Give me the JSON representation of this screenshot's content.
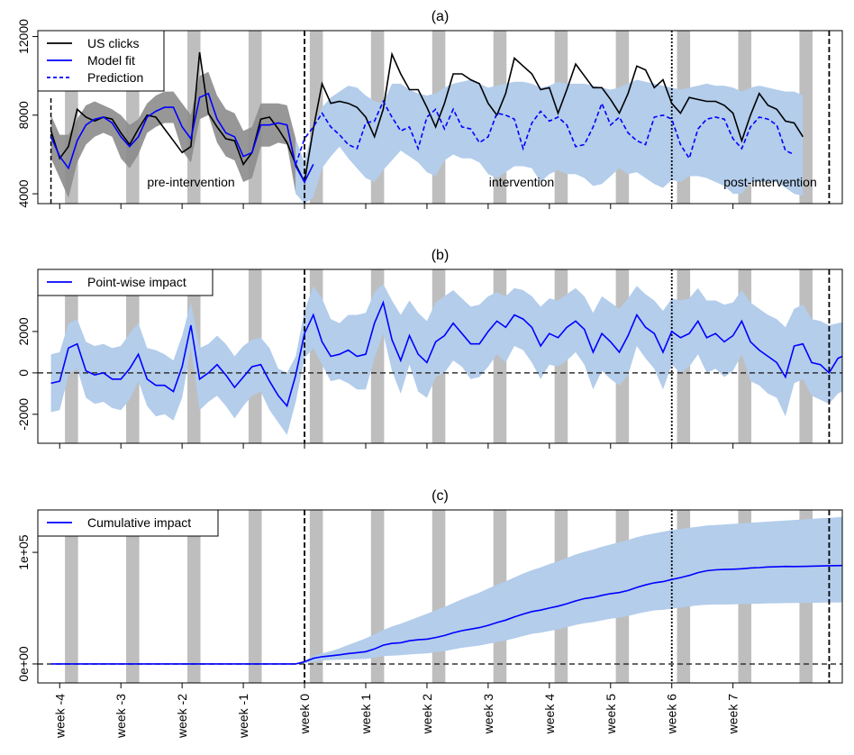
{
  "chart_data": [
    {
      "type": "line",
      "title": "(a)",
      "ylim": [
        3500,
        12300
      ],
      "yticks": [
        4000,
        8000,
        12000
      ],
      "yticklabels": [
        "4000",
        "8000",
        "12000"
      ],
      "legend": {
        "placement": "top-left",
        "entries": [
          "US clicks",
          "Model fit",
          "Prediction"
        ]
      },
      "annotations": [
        "pre-intervention",
        "intervention",
        "post-intervention"
      ],
      "colors": {
        "observed": "#000000",
        "fit": "#0000ff",
        "band_pre": "#8c8c8c",
        "band_post": "#b3cdeb",
        "weekend": "#bebebe"
      },
      "series": [
        {
          "name": "US clicks",
          "x_start": -29,
          "values": [
            7200,
            5800,
            6400,
            8300,
            7900,
            7700,
            7900,
            7800,
            7100,
            6500,
            7300,
            8000,
            7900,
            7300,
            6700,
            6100,
            6400,
            11200,
            8100,
            7400,
            6800,
            6700,
            5500,
            6100,
            7800,
            7900,
            7300,
            6600,
            5500,
            4600,
            7300,
            9600,
            8600,
            8700,
            8600,
            8400,
            7900,
            6900,
            8300,
            11100,
            10100,
            9300,
            9300,
            8400,
            7400,
            8600,
            10100,
            10100,
            9800,
            9600,
            8600,
            8000,
            9100,
            10900,
            10500,
            10100,
            9300,
            9400,
            8100,
            9300,
            10600,
            10000,
            9400,
            9400,
            8800,
            8100,
            9100,
            10500,
            10300,
            9400,
            9800,
            8600,
            8100,
            8900,
            8800,
            8700,
            8700,
            8500,
            8100,
            6700,
            8000,
            9100,
            8500,
            8300,
            7700,
            7600,
            6900
          ]
        },
        {
          "name": "Model fit",
          "x_start": -29,
          "values": [
            6900,
            5900,
            5300,
            6700,
            7500,
            7800,
            7900,
            7600,
            6900,
            6400,
            6900,
            7900,
            8200,
            8400,
            8400,
            7400,
            6800,
            8900,
            9100,
            7800,
            7100,
            6900,
            5900,
            6100,
            7500,
            7500,
            7600,
            7500,
            5400,
            4600,
            5500
          ]
        },
        {
          "name": "Prediction",
          "x_start": -1,
          "values": [
            5500,
            6800,
            7400,
            8100,
            7400,
            7000,
            6500,
            6300,
            7600,
            7700,
            8700,
            7900,
            7200,
            7400,
            6300,
            7900,
            8300,
            7300,
            8300,
            7400,
            7300,
            6600,
            6900,
            8100,
            8000,
            7800,
            6300,
            7600,
            8200,
            7700,
            7900,
            7500,
            6400,
            6500,
            7400,
            8600,
            7500,
            7900,
            7100,
            6700,
            6500,
            7900,
            8000,
            7800,
            6500,
            5800,
            7300,
            7800,
            7900,
            7800,
            6800,
            6300,
            7400,
            7900,
            7800,
            7500,
            6200,
            6000
          ]
        },
        {
          "name": "band",
          "x_start": -29,
          "upper": [
            8000,
            7000,
            7000,
            7800,
            8500,
            8700,
            8500,
            8300,
            8000,
            7500,
            7800,
            8600,
            9000,
            9200,
            9200,
            8600,
            8000,
            10000,
            10200,
            9000,
            8300,
            8100,
            7200,
            7400,
            8600,
            8600,
            8600,
            8500,
            6800,
            5600,
            7400,
            8400,
            8900,
            9200,
            9500,
            9400,
            9000,
            8700,
            8600,
            9600,
            9600,
            9300,
            9100,
            9000,
            9100,
            9400,
            9600,
            9700,
            9800,
            9600,
            9400,
            9500,
            9600,
            9700,
            9700,
            9600,
            9400,
            9500,
            9700,
            9600,
            9600,
            9600,
            9500,
            9400,
            9300,
            9400,
            9600,
            9800,
            9700,
            9600,
            9500,
            9400,
            9300,
            9400,
            9500,
            9600,
            9500,
            9500,
            9400,
            9200,
            9400,
            9500,
            9400,
            9300,
            9200,
            9200,
            9000
          ],
          "lower": [
            5800,
            4800,
            3800,
            5600,
            6500,
            6900,
            7100,
            6900,
            5800,
            5300,
            6000,
            7100,
            7400,
            7600,
            7600,
            6200,
            5600,
            7800,
            8000,
            6600,
            5900,
            5700,
            4600,
            4800,
            6400,
            6400,
            6600,
            6500,
            4000,
            3500,
            3800,
            5300,
            5900,
            6400,
            5800,
            5300,
            4800,
            4600,
            5200,
            5700,
            6200,
            5900,
            5600,
            5100,
            4900,
            5700,
            6000,
            5800,
            5800,
            5600,
            5000,
            4800,
            5100,
            5400,
            5400,
            5300,
            4600,
            5000,
            5200,
            5000,
            5000,
            4800,
            4400,
            4500,
            4900,
            5300,
            5000,
            5100,
            4800,
            4500,
            4300,
            4700,
            4600,
            4900,
            4900,
            4800,
            4600,
            4400,
            4000,
            4000,
            4600,
            4600,
            4600,
            4600,
            4300,
            4000,
            3900
          ]
        }
      ]
    },
    {
      "type": "line",
      "title": "(b)",
      "ylim": [
        -3400,
        5000
      ],
      "yticks": [
        -2000,
        0,
        2000
      ],
      "yticklabels": [
        "-2000",
        "0",
        "2000"
      ],
      "legend": {
        "placement": "top-left",
        "entries": [
          "Point-wise impact"
        ]
      },
      "series": [
        {
          "name": "Point-wise impact",
          "x_start": -29,
          "values": [
            -500,
            -400,
            1200,
            1400,
            100,
            -100,
            0,
            -300,
            -300,
            200,
            900,
            -300,
            -600,
            -600,
            -900,
            300,
            2300,
            -300,
            0,
            400,
            -100,
            -700,
            -200,
            300,
            400,
            -400,
            -1100,
            -1600,
            -100,
            1900,
            2800,
            1500,
            800,
            900,
            1100,
            800,
            900,
            2400,
            3400,
            1600,
            600,
            1800,
            900,
            500,
            1500,
            1800,
            2400,
            1900,
            1400,
            1400,
            2000,
            2500,
            2200,
            2800,
            2600,
            2200,
            1300,
            1900,
            1700,
            2200,
            2500,
            2100,
            1000,
            1900,
            1500,
            1000,
            1800,
            2800,
            2200,
            1900,
            1000,
            2000,
            1700,
            1900,
            2500,
            1700,
            1900,
            1500,
            1800,
            2500,
            1500,
            1100,
            800,
            500,
            -200,
            1300,
            1400,
            500,
            400,
            0,
            700,
            900
          ]
        },
        {
          "name": "band",
          "x_start": -29,
          "upper": [
            900,
            1000,
            2400,
            2600,
            1500,
            1300,
            1400,
            1200,
            1300,
            1900,
            2400,
            1200,
            1100,
            900,
            600,
            1800,
            3400,
            1200,
            1400,
            1800,
            1400,
            800,
            1300,
            1600,
            1700,
            1200,
            200,
            0,
            800,
            3000,
            4200,
            3600,
            2600,
            2400,
            2800,
            2800,
            2900,
            3900,
            4300,
            3500,
            2800,
            3500,
            2900,
            2500,
            3400,
            3700,
            4000,
            3600,
            3200,
            3300,
            3700,
            3900,
            3700,
            4100,
            4000,
            3700,
            3200,
            3600,
            3500,
            3800,
            4100,
            3700,
            2900,
            3700,
            3400,
            3100,
            3600,
            4200,
            3800,
            3500,
            3000,
            3600,
            3500,
            3600,
            4100,
            3500,
            3500,
            3300,
            3400,
            4000,
            3400,
            3100,
            2800,
            2600,
            2200,
            3100,
            3300,
            2600,
            2500,
            2300,
            2400,
            2500
          ],
          "lower": [
            -1900,
            -1800,
            -100,
            200,
            -1200,
            -1500,
            -1400,
            -1700,
            -1800,
            -1300,
            -400,
            -1600,
            -2100,
            -2000,
            -2300,
            -1200,
            1200,
            -1800,
            -1400,
            -1100,
            -1600,
            -2200,
            -1600,
            -1100,
            -900,
            -1800,
            -2400,
            -3000,
            -1400,
            700,
            1200,
            400,
            -400,
            -300,
            -500,
            -800,
            -800,
            700,
            1900,
            100,
            -1000,
            400,
            -900,
            -1200,
            -200,
            0,
            600,
            300,
            -300,
            -200,
            300,
            900,
            500,
            1300,
            1100,
            500,
            -300,
            400,
            300,
            600,
            1000,
            400,
            -800,
            100,
            -300,
            -600,
            -100,
            1300,
            700,
            200,
            -800,
            400,
            0,
            300,
            900,
            0,
            200,
            -200,
            100,
            900,
            -400,
            -600,
            -1000,
            -1200,
            -2100,
            -500,
            -300,
            -1100,
            -1300,
            -1500,
            -1000,
            -800
          ]
        }
      ]
    },
    {
      "type": "line",
      "title": "(c)",
      "ylim": [
        -17000,
        138000
      ],
      "yticks": [
        0,
        100000
      ],
      "yticklabels": [
        "0e+00",
        "1e+05"
      ],
      "legend": {
        "placement": "top-left",
        "entries": [
          "Cumulative impact"
        ]
      },
      "series": [
        {
          "name": "Cumulative impact",
          "x_start": -29,
          "values": [
            0,
            0,
            0,
            0,
            0,
            0,
            0,
            0,
            0,
            0,
            0,
            0,
            0,
            0,
            0,
            0,
            0,
            0,
            0,
            0,
            0,
            0,
            0,
            0,
            0,
            0,
            0,
            0,
            0,
            2000,
            5000,
            6500,
            7300,
            8200,
            9300,
            10100,
            11000,
            13400,
            16800,
            18400,
            19000,
            20800,
            21700,
            22200,
            23700,
            25500,
            27900,
            29800,
            31200,
            32600,
            34600,
            37100,
            39300,
            42100,
            44700,
            46900,
            48200,
            50100,
            51800,
            54000,
            56500,
            58600,
            59600,
            61500,
            63000,
            64000,
            65800,
            68600,
            70800,
            72700,
            73700,
            75700,
            77400,
            79300,
            81800,
            83500,
            84300,
            84600,
            84900,
            85300,
            86000,
            86300,
            86900,
            87100,
            87400,
            87300,
            87400,
            87600,
            87800,
            88000,
            88100,
            88300
          ]
        },
        {
          "name": "band",
          "x_start": -29,
          "upper": [
            0,
            0,
            0,
            0,
            0,
            0,
            0,
            0,
            0,
            0,
            0,
            0,
            0,
            0,
            0,
            0,
            0,
            0,
            0,
            0,
            0,
            0,
            0,
            0,
            0,
            0,
            0,
            0,
            0,
            3000,
            7000,
            9500,
            11500,
            14000,
            17000,
            20000,
            23000,
            26500,
            30500,
            33500,
            36000,
            39000,
            42000,
            45000,
            48000,
            51000,
            54500,
            58000,
            61000,
            64000,
            67500,
            71000,
            74000,
            77500,
            81000,
            84000,
            86500,
            89500,
            92000,
            95000,
            98000,
            100500,
            102500,
            105000,
            107000,
            109000,
            111000,
            113500,
            115500,
            117000,
            118500,
            120000,
            121000,
            122000,
            123000,
            124000,
            124500,
            125000,
            125500,
            126000,
            126500,
            127000,
            127500,
            128000,
            128500,
            129000,
            129500,
            130000,
            130500,
            131000,
            131500,
            132000
          ],
          "lower": [
            0,
            0,
            0,
            0,
            0,
            0,
            0,
            0,
            0,
            0,
            0,
            0,
            0,
            0,
            0,
            0,
            0,
            0,
            0,
            0,
            0,
            0,
            0,
            0,
            0,
            0,
            0,
            0,
            0,
            500,
            2000,
            3000,
            3500,
            3800,
            4000,
            4200,
            4500,
            5500,
            7000,
            7500,
            7800,
            8500,
            9000,
            9500,
            10500,
            11500,
            13000,
            14500,
            15500,
            16500,
            18000,
            19500,
            21000,
            23000,
            25000,
            27000,
            28000,
            29500,
            31000,
            33000,
            35000,
            36500,
            37500,
            39000,
            40500,
            41500,
            43000,
            45000,
            46500,
            48000,
            48500,
            49500,
            50500,
            51500,
            52500,
            53000,
            53200,
            53200,
            53400,
            53600,
            53800,
            54000,
            54200,
            54400,
            54500,
            54600,
            54700,
            54800,
            54900,
            55000,
            55100,
            55200
          ]
        }
      ]
    }
  ],
  "x_axis": {
    "tick_labels": [
      "week -4",
      "week -3",
      "week -2",
      "week -1",
      "week 0",
      "week 1",
      "week 2",
      "week 3",
      "week 4",
      "week 5",
      "week 6",
      "week 7"
    ],
    "xlim": [
      -30.5,
      61.5
    ],
    "weekend_bands_start": [
      -27.4,
      -20.4,
      -13.4,
      -6.4,
      0.6,
      7.6,
      14.6,
      21.6,
      28.6,
      35.6,
      42.6,
      49.6,
      56.6
    ],
    "intervention_start": 0,
    "intervention_end": 42,
    "post_end": 60
  }
}
